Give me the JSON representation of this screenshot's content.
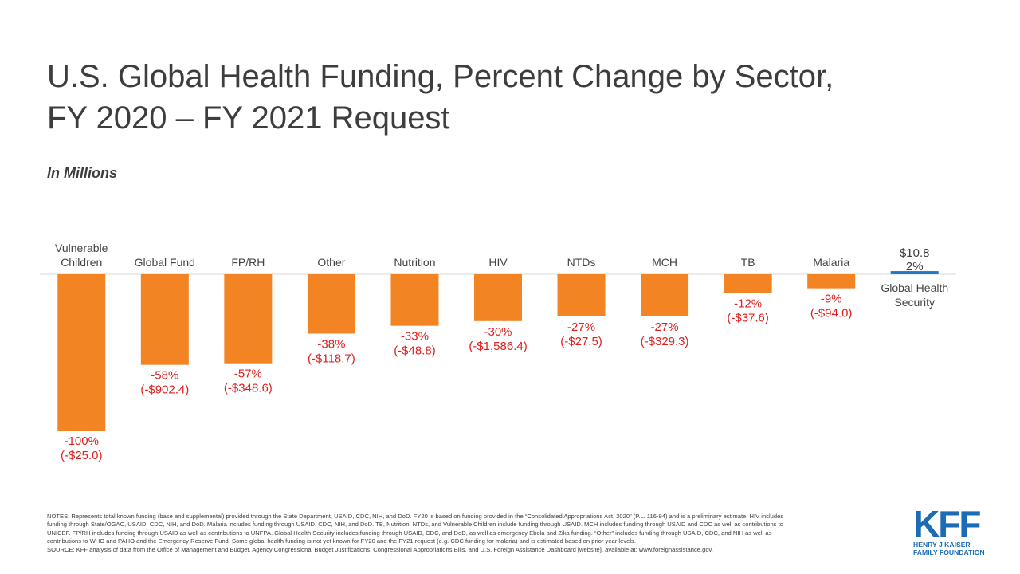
{
  "title_lines": [
    "U.S. Global Health Funding, Percent Change by Sector,",
    "FY 2020 – FY 2021 Request"
  ],
  "subtitle": "In Millions",
  "colors": {
    "decrease": "#f28424",
    "increase": "#1f78c1",
    "label_neg": "#e0201f",
    "label_pos": "#3d3d3d",
    "axis": "#d9d9d9"
  },
  "chart_data": {
    "type": "bar",
    "categories": [
      [
        "Vulnerable",
        "Children"
      ],
      [
        "Global Fund"
      ],
      [
        "FP/RH"
      ],
      [
        "Other"
      ],
      [
        "Nutrition"
      ],
      [
        "HIV"
      ],
      [
        "NTDs"
      ],
      [
        "MCH"
      ],
      [
        "TB"
      ],
      [
        "Malaria"
      ],
      [
        "Global Health",
        "Security"
      ]
    ],
    "percent_change": [
      -100,
      -58,
      -57,
      -38,
      -33,
      -30,
      -27,
      -27,
      -12,
      -9,
      2
    ],
    "dollar_change": [
      -25.0,
      -902.4,
      -348.6,
      -118.7,
      -48.8,
      -1586.4,
      -27.5,
      -329.3,
      -37.6,
      -94.0,
      10.8
    ],
    "pct_labels": [
      "-100%",
      "-58%",
      "-57%",
      "-38%",
      "-33%",
      "-30%",
      "-27%",
      "-27%",
      "-12%",
      "-9%",
      "2%"
    ],
    "dollar_labels": [
      "(-$25.0)",
      "(-$902.4)",
      "(-$348.6)",
      "(-$118.7)",
      "(-$48.8)",
      "(-$1,586.4)",
      "(-$27.5)",
      "(-$329.3)",
      "(-$37.6)",
      "(-$94.0)",
      "$10.8"
    ],
    "ylim": [
      -100,
      2
    ]
  },
  "notes": {
    "lines": [
      "NOTES: Represents total known funding (base and supplemental) provided through the State Department, USAID, CDC, NIH, and DoD. FY20 is based on funding provided in the “Consolidated Appropriations Act, 2020” (P.L. 116-94) and is a preliminary estimate. HIV includes",
      "funding through State/OGAC, USAID, CDC, NIH, and DoD. Malaria includes funding through USAID, CDC, NIH, and DoD. TB, Nutrition, NTDs, and Vulnerable Children include funding through USAID. MCH includes funding through USAID and CDC as well as contributions to",
      "UNICEF. FP/RH includes funding through USAID as well as contributions to UNFPA. Global Health Security includes funding through USAID, CDC, and DoD, as well as emergency Ebola and Zika funding. “Other” includes funding through USAID, CDC, and NIH as well as",
      "contributions to WHO and PAHO and the Emergency Reserve Fund. Some global health funding is not yet known for FY20 and the FY21 request (e.g. CDC funding for malaria) and is estimated based on prior year levels.",
      "SOURCE: KFF analysis of data from the Office of Management and Budget, Agency Congressional Budget Justifications, Congressional Appropriations Bills, and U.S. Foreign Assistance Dashboard [website], available at: www.foreignassistance.gov."
    ]
  },
  "logo": {
    "mark": "KFF",
    "line1": "HENRY J KAISER",
    "line2": "FAMILY FOUNDATION"
  }
}
